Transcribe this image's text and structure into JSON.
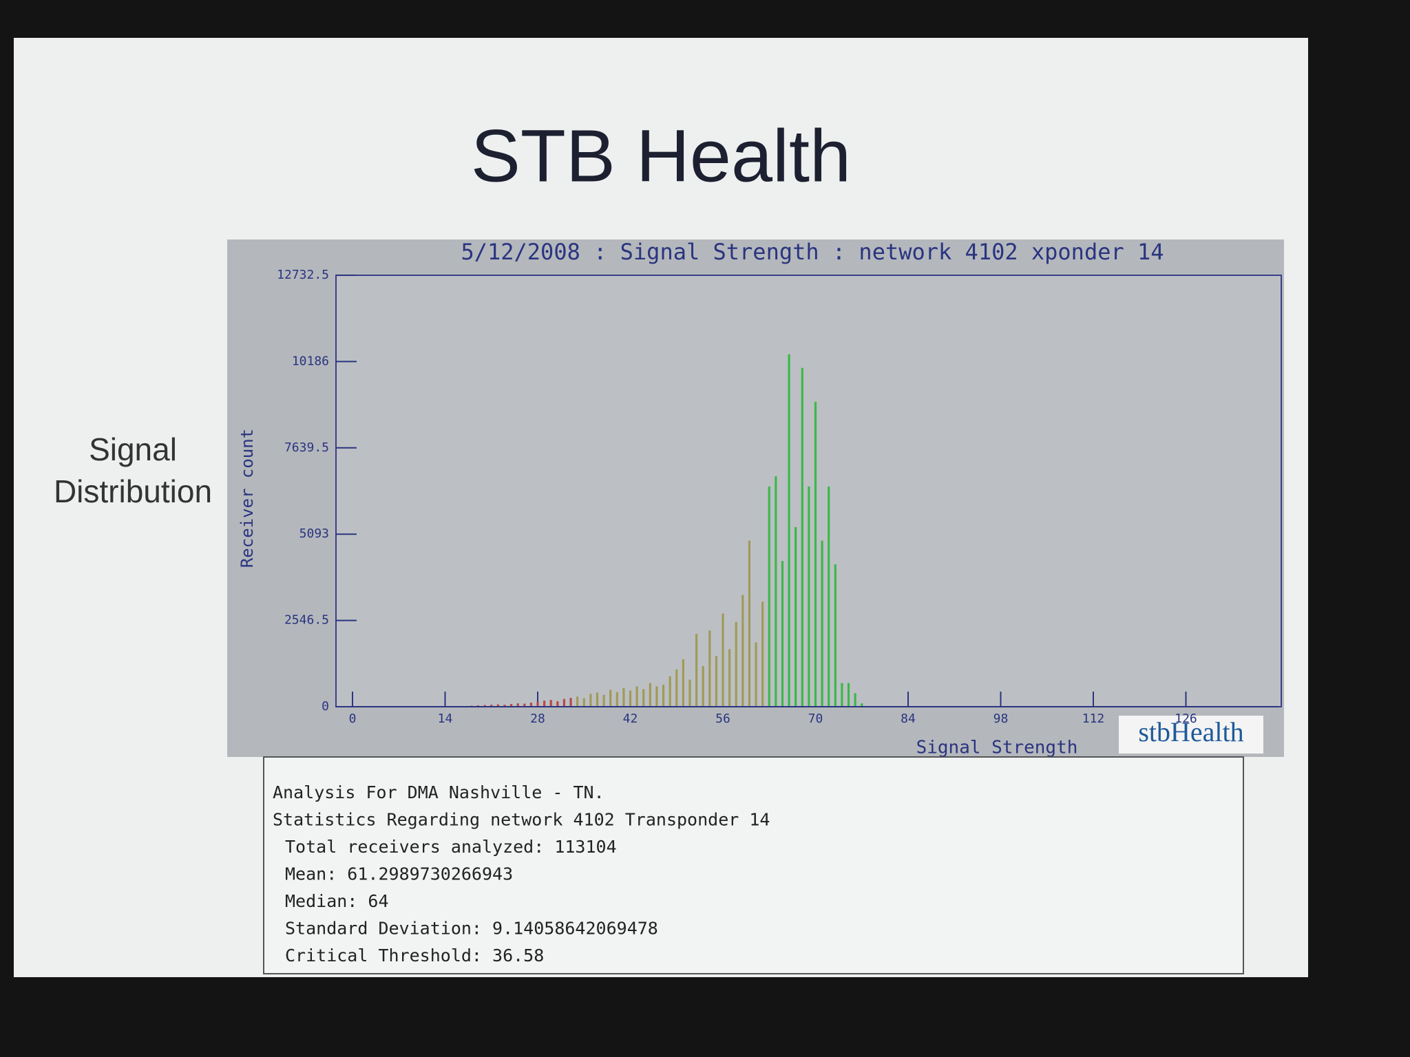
{
  "slide": {
    "title": "STB Health",
    "side_label": [
      "Signal",
      "Distribution"
    ],
    "stats": [
      "Analysis For DMA Nashville - TN.",
      "Statistics Regarding network 4102 Transponder 14",
      "Total receivers analyzed: 113104",
      "Mean: 61.2989730266943",
      "Median: 64",
      "Standard Deviation: 9.14058642069478",
      "Critical Threshold: 36.58"
    ],
    "logo": "stbHealth"
  },
  "chart_data": {
    "type": "bar",
    "title": "5/12/2008 : Signal Strength : network 4102 xponder 14",
    "x_label": "Signal Strength",
    "y_label": "Receiver count",
    "x": [
      18,
      19,
      20,
      21,
      22,
      23,
      24,
      25,
      26,
      27,
      28,
      29,
      30,
      31,
      32,
      33,
      34,
      35,
      36,
      37,
      38,
      39,
      40,
      41,
      42,
      43,
      44,
      45,
      46,
      47,
      48,
      49,
      50,
      51,
      52,
      53,
      54,
      55,
      56,
      57,
      58,
      59,
      60,
      61,
      62,
      63,
      64,
      65,
      66,
      67,
      68,
      69,
      70,
      71,
      72,
      73,
      74,
      75,
      76,
      77
    ],
    "values": [
      30,
      40,
      50,
      60,
      70,
      60,
      80,
      100,
      90,
      120,
      150,
      180,
      200,
      160,
      230,
      260,
      300,
      250,
      380,
      420,
      350,
      500,
      430,
      550,
      480,
      600,
      520,
      700,
      600,
      650,
      900,
      1100,
      1400,
      800,
      2150,
      1200,
      2250,
      1500,
      2750,
      1700,
      2500,
      3300,
      4900,
      1900,
      3100,
      6500,
      6800,
      4300,
      10400,
      5300,
      10000,
      6500,
      9000,
      4900,
      6500,
      4200,
      700,
      700,
      400,
      100
    ],
    "colors": [
      "#b84848",
      "#b84848",
      "#b84848",
      "#b84848",
      "#b84848",
      "#b84848",
      "#b84848",
      "#b84848",
      "#b84848",
      "#b84848",
      "#b84848",
      "#b84848",
      "#b84848",
      "#b84848",
      "#b84848",
      "#b84848",
      "#a09a58",
      "#a09a58",
      "#a09a58",
      "#a09a58",
      "#a09a58",
      "#a09a58",
      "#a09a58",
      "#a09a58",
      "#a09a58",
      "#a09a58",
      "#a09a58",
      "#a09a58",
      "#a09a58",
      "#a09a58",
      "#a09a58",
      "#a09a58",
      "#a09a58",
      "#a09a58",
      "#a09a58",
      "#a09a58",
      "#a09a58",
      "#a09a58",
      "#a09a58",
      "#a09a58",
      "#a09a58",
      "#a09a58",
      "#a09a58",
      "#a09a58",
      "#a09a58",
      "#3cb84a",
      "#3cb84a",
      "#3cb84a",
      "#3cb84a",
      "#3cb84a",
      "#3cb84a",
      "#3cb84a",
      "#3cb84a",
      "#3cb84a",
      "#3cb84a",
      "#3cb84a",
      "#3cb84a",
      "#3cb84a",
      "#3cb84a",
      "#3cb84a"
    ],
    "xlim": [
      -2.5,
      140
    ],
    "xticks": [
      0,
      14,
      28,
      42,
      56,
      70,
      84,
      98,
      112,
      126
    ],
    "ylim": [
      0,
      12732.5
    ],
    "yticks": [
      0,
      2546.5,
      5093,
      7639.5,
      10186,
      12732.5
    ]
  }
}
